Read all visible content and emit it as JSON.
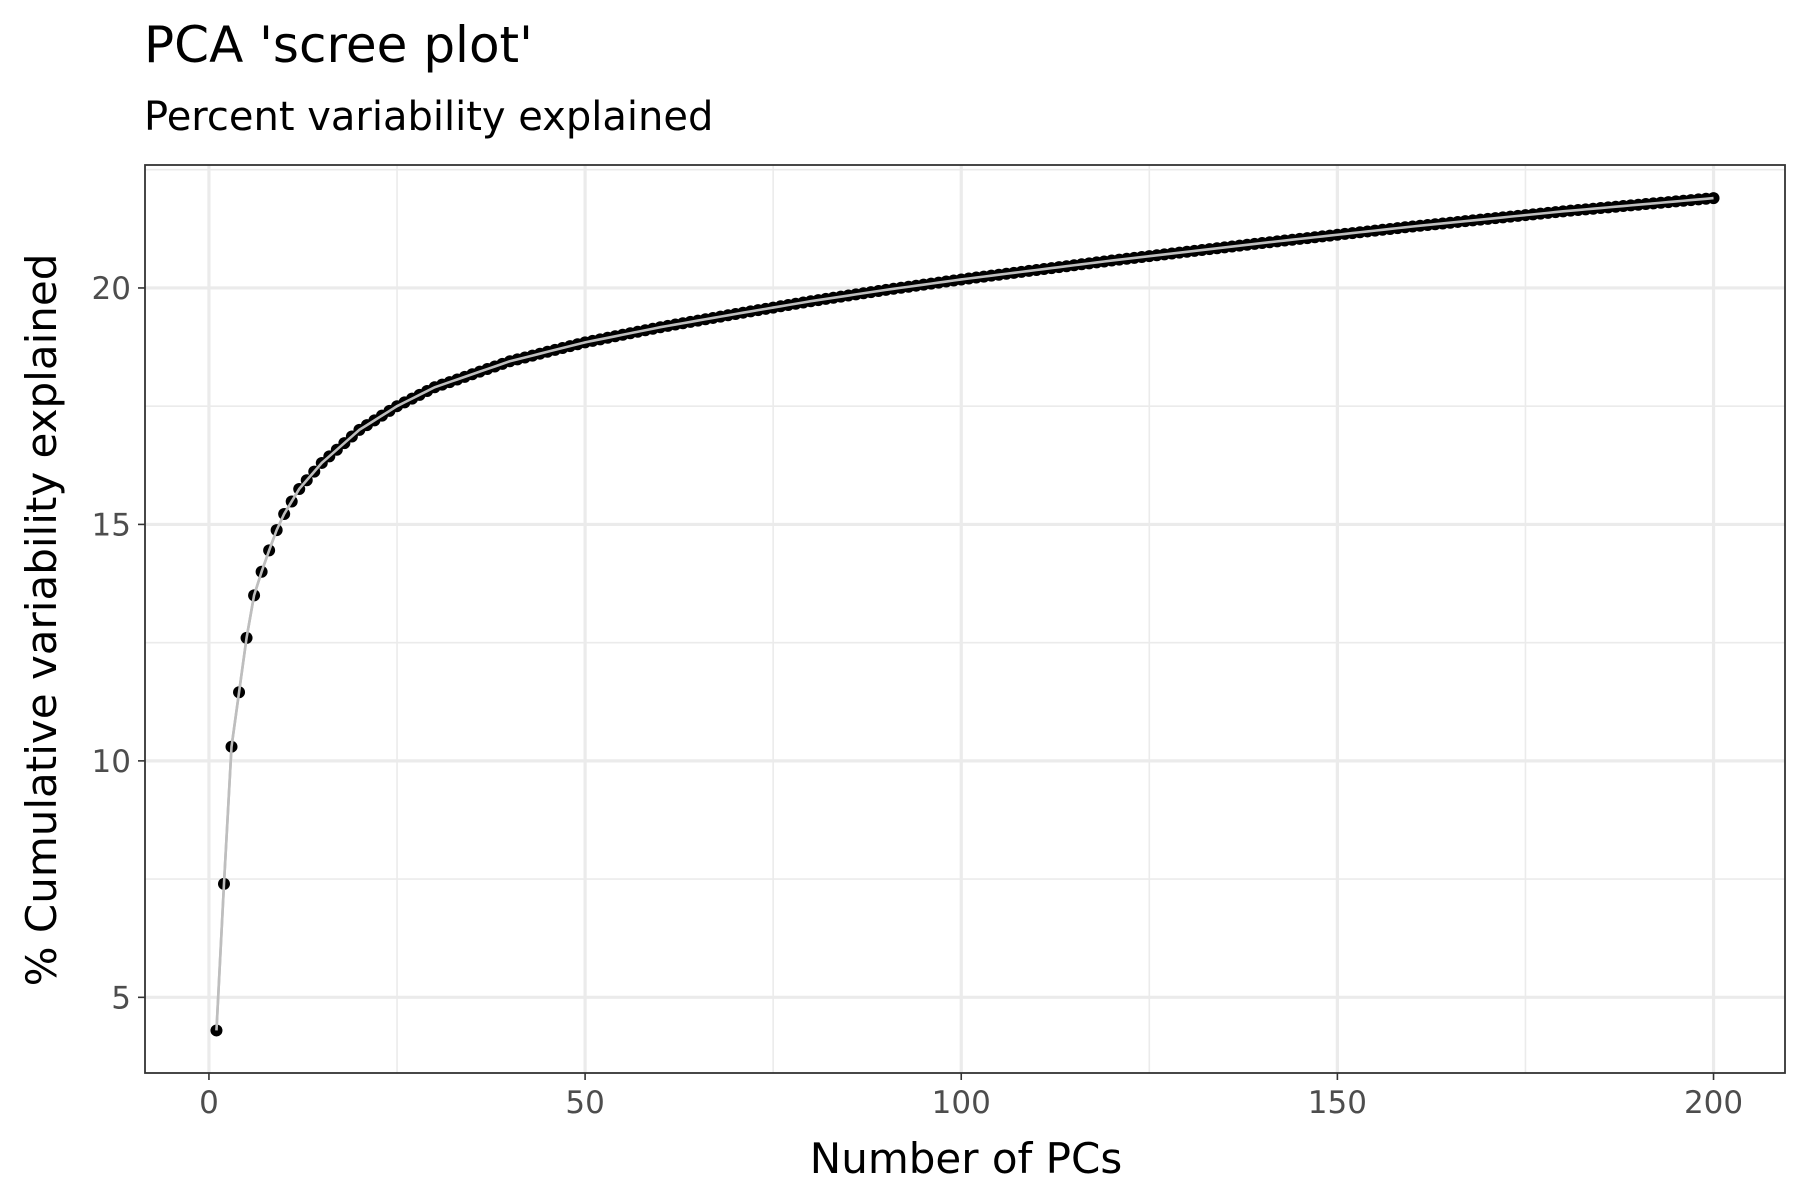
{
  "chart_data": {
    "type": "line",
    "title": "PCA 'scree plot'",
    "subtitle": "Percent variability explained",
    "xlabel": "Number of PCs",
    "ylabel": "% Cumulative variability explained",
    "xlim": [
      -8.5,
      209.5
    ],
    "ylim": [
      3.4,
      22.6
    ],
    "x_ticks": [
      0,
      50,
      100,
      150,
      200
    ],
    "y_ticks": [
      5,
      10,
      15,
      20
    ],
    "x_tick_labels": [
      "0",
      "50",
      "100",
      "150",
      "200"
    ],
    "y_tick_labels": [
      "5",
      "10",
      "15",
      "20"
    ],
    "grid": true,
    "legend": "none",
    "n_points": 200,
    "line_color": "#bebebe",
    "point_color": "#000000",
    "series": [
      {
        "x_start": 1,
        "x_end": 200,
        "anchor_points": [
          [
            1,
            4.3
          ],
          [
            2,
            7.4
          ],
          [
            3,
            10.3
          ],
          [
            4,
            11.45
          ],
          [
            5,
            12.6
          ],
          [
            6,
            13.5
          ],
          [
            7,
            14.0
          ],
          [
            8,
            14.45
          ],
          [
            9,
            14.88
          ],
          [
            10,
            15.22
          ],
          [
            12,
            15.75
          ],
          [
            15,
            16.3
          ],
          [
            20,
            17.0
          ],
          [
            25,
            17.5
          ],
          [
            30,
            17.9
          ],
          [
            40,
            18.45
          ],
          [
            50,
            18.85
          ],
          [
            60,
            19.17
          ],
          [
            70,
            19.45
          ],
          [
            80,
            19.72
          ],
          [
            90,
            19.96
          ],
          [
            100,
            20.18
          ],
          [
            120,
            20.58
          ],
          [
            140,
            20.95
          ],
          [
            160,
            21.3
          ],
          [
            180,
            21.62
          ],
          [
            200,
            21.9
          ]
        ]
      }
    ]
  }
}
